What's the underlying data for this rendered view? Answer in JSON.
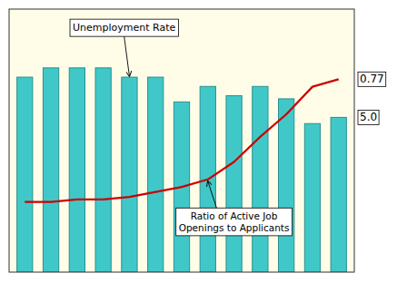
{
  "chart_data": {
    "type": "bar",
    "categories": [
      null,
      null,
      null,
      null,
      null,
      null,
      null,
      null,
      null,
      null,
      null,
      null,
      null
    ],
    "series": [
      {
        "type": "bar",
        "color": "#40C8C8",
        "values": [
          6.3,
          6.6,
          6.6,
          6.6,
          6.3,
          6.3,
          5.5,
          6.0,
          5.7,
          6.0,
          5.6,
          4.8,
          5.0
        ]
      },
      {
        "type": "line",
        "axis": "y2",
        "color": "#CC0000",
        "values": [
          0.28,
          0.28,
          0.29,
          0.29,
          0.3,
          0.32,
          0.34,
          0.37,
          0.44,
          0.54,
          0.63,
          0.74,
          0.77
        ]
      }
    ],
    "ylim": [
      0,
      8.5
    ],
    "yticks": [],
    "y2lim": [
      0.0,
      1.05
    ],
    "y2ticks": [],
    "tick_labels": false,
    "annotations": [
      "Unemployment Rate",
      "Ratio of Active Job\nOpenings to Applicants",
      "0.77",
      "5.0"
    ]
  }
}
